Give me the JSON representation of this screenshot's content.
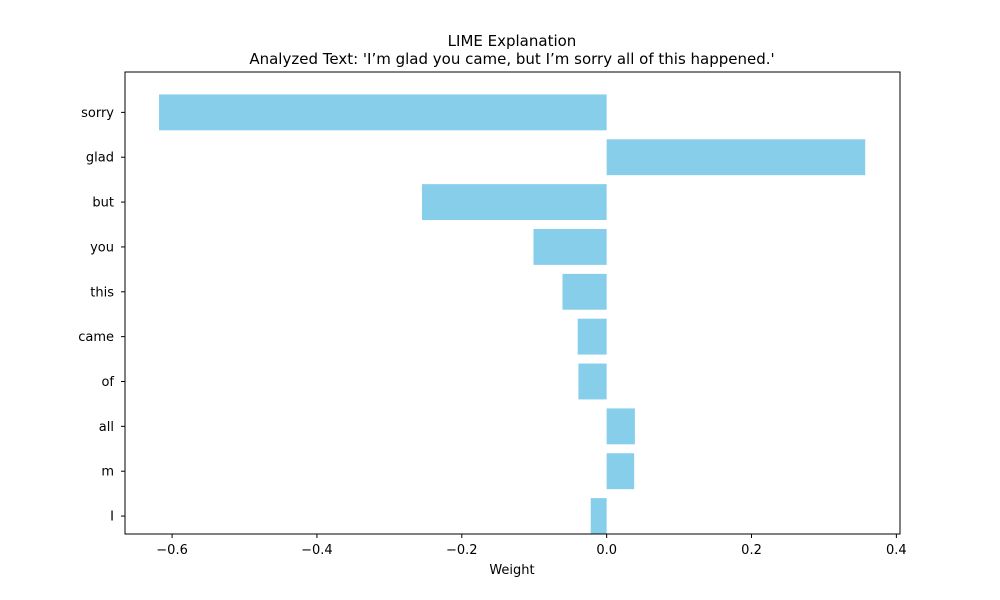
{
  "chart_data": {
    "type": "bar",
    "orientation": "horizontal",
    "title": "LIME Explanation",
    "subtitle": "Analyzed Text: 'I’m glad you came, but I’m sorry all of this happened.'",
    "xlabel": "Weight",
    "ylabel": "",
    "categories": [
      "sorry",
      "glad",
      "but",
      "you",
      "this",
      "came",
      "of",
      "all",
      "m",
      "I"
    ],
    "values": [
      -0.618,
      0.357,
      -0.255,
      -0.101,
      -0.061,
      -0.04,
      -0.039,
      0.039,
      0.038,
      -0.022
    ],
    "xlim": [
      -0.665,
      0.405
    ],
    "xticks": [
      -0.6,
      -0.4,
      -0.2,
      0.0,
      0.2,
      0.4
    ],
    "xtick_labels": [
      "−0.6",
      "−0.4",
      "−0.2",
      "0.0",
      "0.2",
      "0.4"
    ],
    "bar_color": "#87CEEB",
    "grid": false,
    "legend": "none"
  }
}
